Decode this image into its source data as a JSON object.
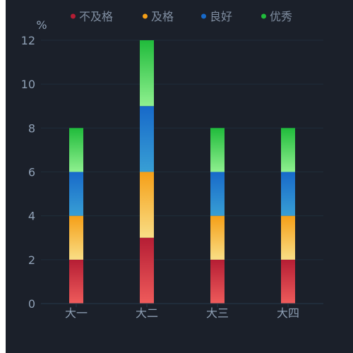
{
  "chart_data": {
    "type": "bar",
    "stacked": true,
    "categories": [
      "大一",
      "大二",
      "大三",
      "大四"
    ],
    "unit_label": "%",
    "ylim": [
      0,
      12
    ],
    "y_ticks": [
      0,
      2,
      4,
      6,
      8,
      10,
      12
    ],
    "grid": true,
    "legend_position": "top",
    "series": [
      {
        "name": "不及格",
        "values": [
          2,
          3,
          2,
          2
        ],
        "color_top": "#b51d34",
        "color_bottom": "#ef5b5b"
      },
      {
        "name": "及格",
        "values": [
          2,
          3,
          2,
          2
        ],
        "color_top": "#f59f17",
        "color_bottom": "#f9de86"
      },
      {
        "name": "良好",
        "values": [
          2,
          3,
          2,
          2
        ],
        "color_top": "#1769c9",
        "color_bottom": "#389fd5"
      },
      {
        "name": "优秀",
        "values": [
          2,
          3,
          2,
          2
        ],
        "color_top": "#20bb3b",
        "color_bottom": "#8ff08f"
      }
    ],
    "colors": {
      "background": "#1b202a",
      "axis": "#243849",
      "grid": "#1f2d3a",
      "text": "#8fa0b5",
      "legend_text": "#7f8da0"
    }
  }
}
